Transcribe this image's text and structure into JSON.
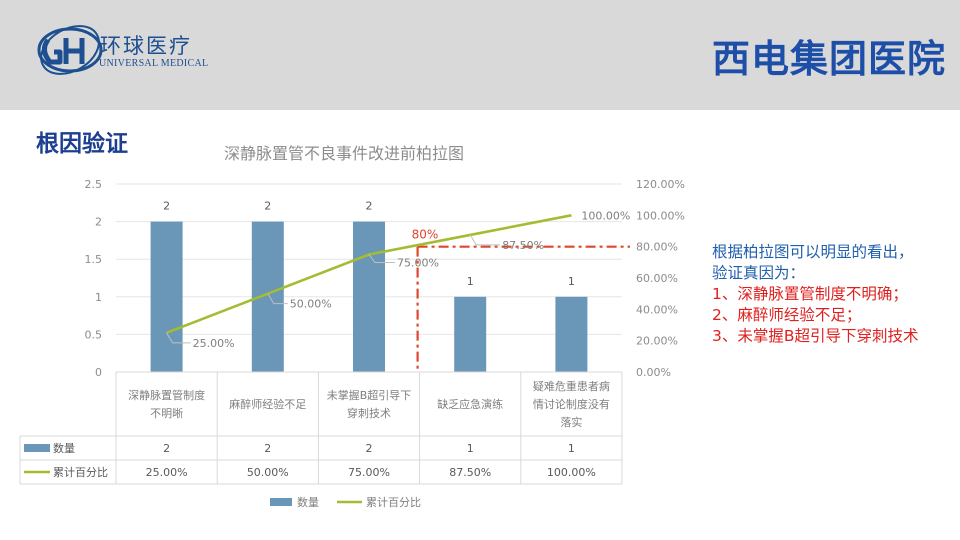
{
  "header": {
    "logo_cn": "环球医疗",
    "logo_en": "UNIVERSAL MEDICAL",
    "hospital_name": "西电集团医院"
  },
  "section_title": "根因验证",
  "conclusion": {
    "intro_line1": "根据柏拉图可以明显的看出，",
    "intro_line2": "验证真因为：",
    "items": [
      "1、深静脉置管制度不明确；",
      "2、麻醉师经验不足；",
      "3、未掌握B超引导下穿刺技术"
    ]
  },
  "colors": {
    "bar": "#6a97b7",
    "line": "#a3bd32",
    "threshold": "#e0462a",
    "brand": "#1d4fa8"
  },
  "chart_data": {
    "type": "bar",
    "title": "深静脉置管不良事件改进前柏拉图",
    "categories": [
      [
        "深静脉置管制度",
        "不明晰"
      ],
      [
        "麻醉师经验不足"
      ],
      [
        "未掌握B超引导下",
        "穿刺技术"
      ],
      [
        "缺乏应急演练"
      ],
      [
        "疑难危重患者病",
        "情讨论制度没有",
        "落实"
      ]
    ],
    "series": [
      {
        "name": "数量",
        "type": "bar",
        "axis": "left",
        "values": [
          2,
          2,
          2,
          1,
          1
        ]
      },
      {
        "name": "累计百分比",
        "type": "line",
        "axis": "right",
        "values": [
          25,
          50,
          75,
          87.5,
          100
        ]
      }
    ],
    "bar_labels": [
      "2",
      "2",
      "2",
      "1",
      "1"
    ],
    "line_labels": [
      "25.00%",
      "50.00%",
      "75.00%",
      "87.50%",
      "100.00%"
    ],
    "y_left": {
      "min": 0,
      "max": 2.5,
      "ticks": [
        "0",
        "0.5",
        "1",
        "1.5",
        "2",
        "2.5"
      ]
    },
    "y_right": {
      "min": 0,
      "max": 120,
      "ticks": [
        "0.00%",
        "20.00%",
        "40.00%",
        "60.00%",
        "80.00%",
        "100.00%",
        "120.00%"
      ]
    },
    "threshold": {
      "value": 80,
      "label": "80%"
    },
    "table": {
      "rows": [
        {
          "name": "数量",
          "values": [
            "2",
            "2",
            "2",
            "1",
            "1"
          ]
        },
        {
          "name": "累计百分比",
          "values": [
            "25.00%",
            "50.00%",
            "75.00%",
            "87.50%",
            "100.00%"
          ]
        }
      ]
    },
    "legend": [
      "数量",
      "累计百分比"
    ],
    "gridlines": true,
    "legend_position": "bottom"
  }
}
